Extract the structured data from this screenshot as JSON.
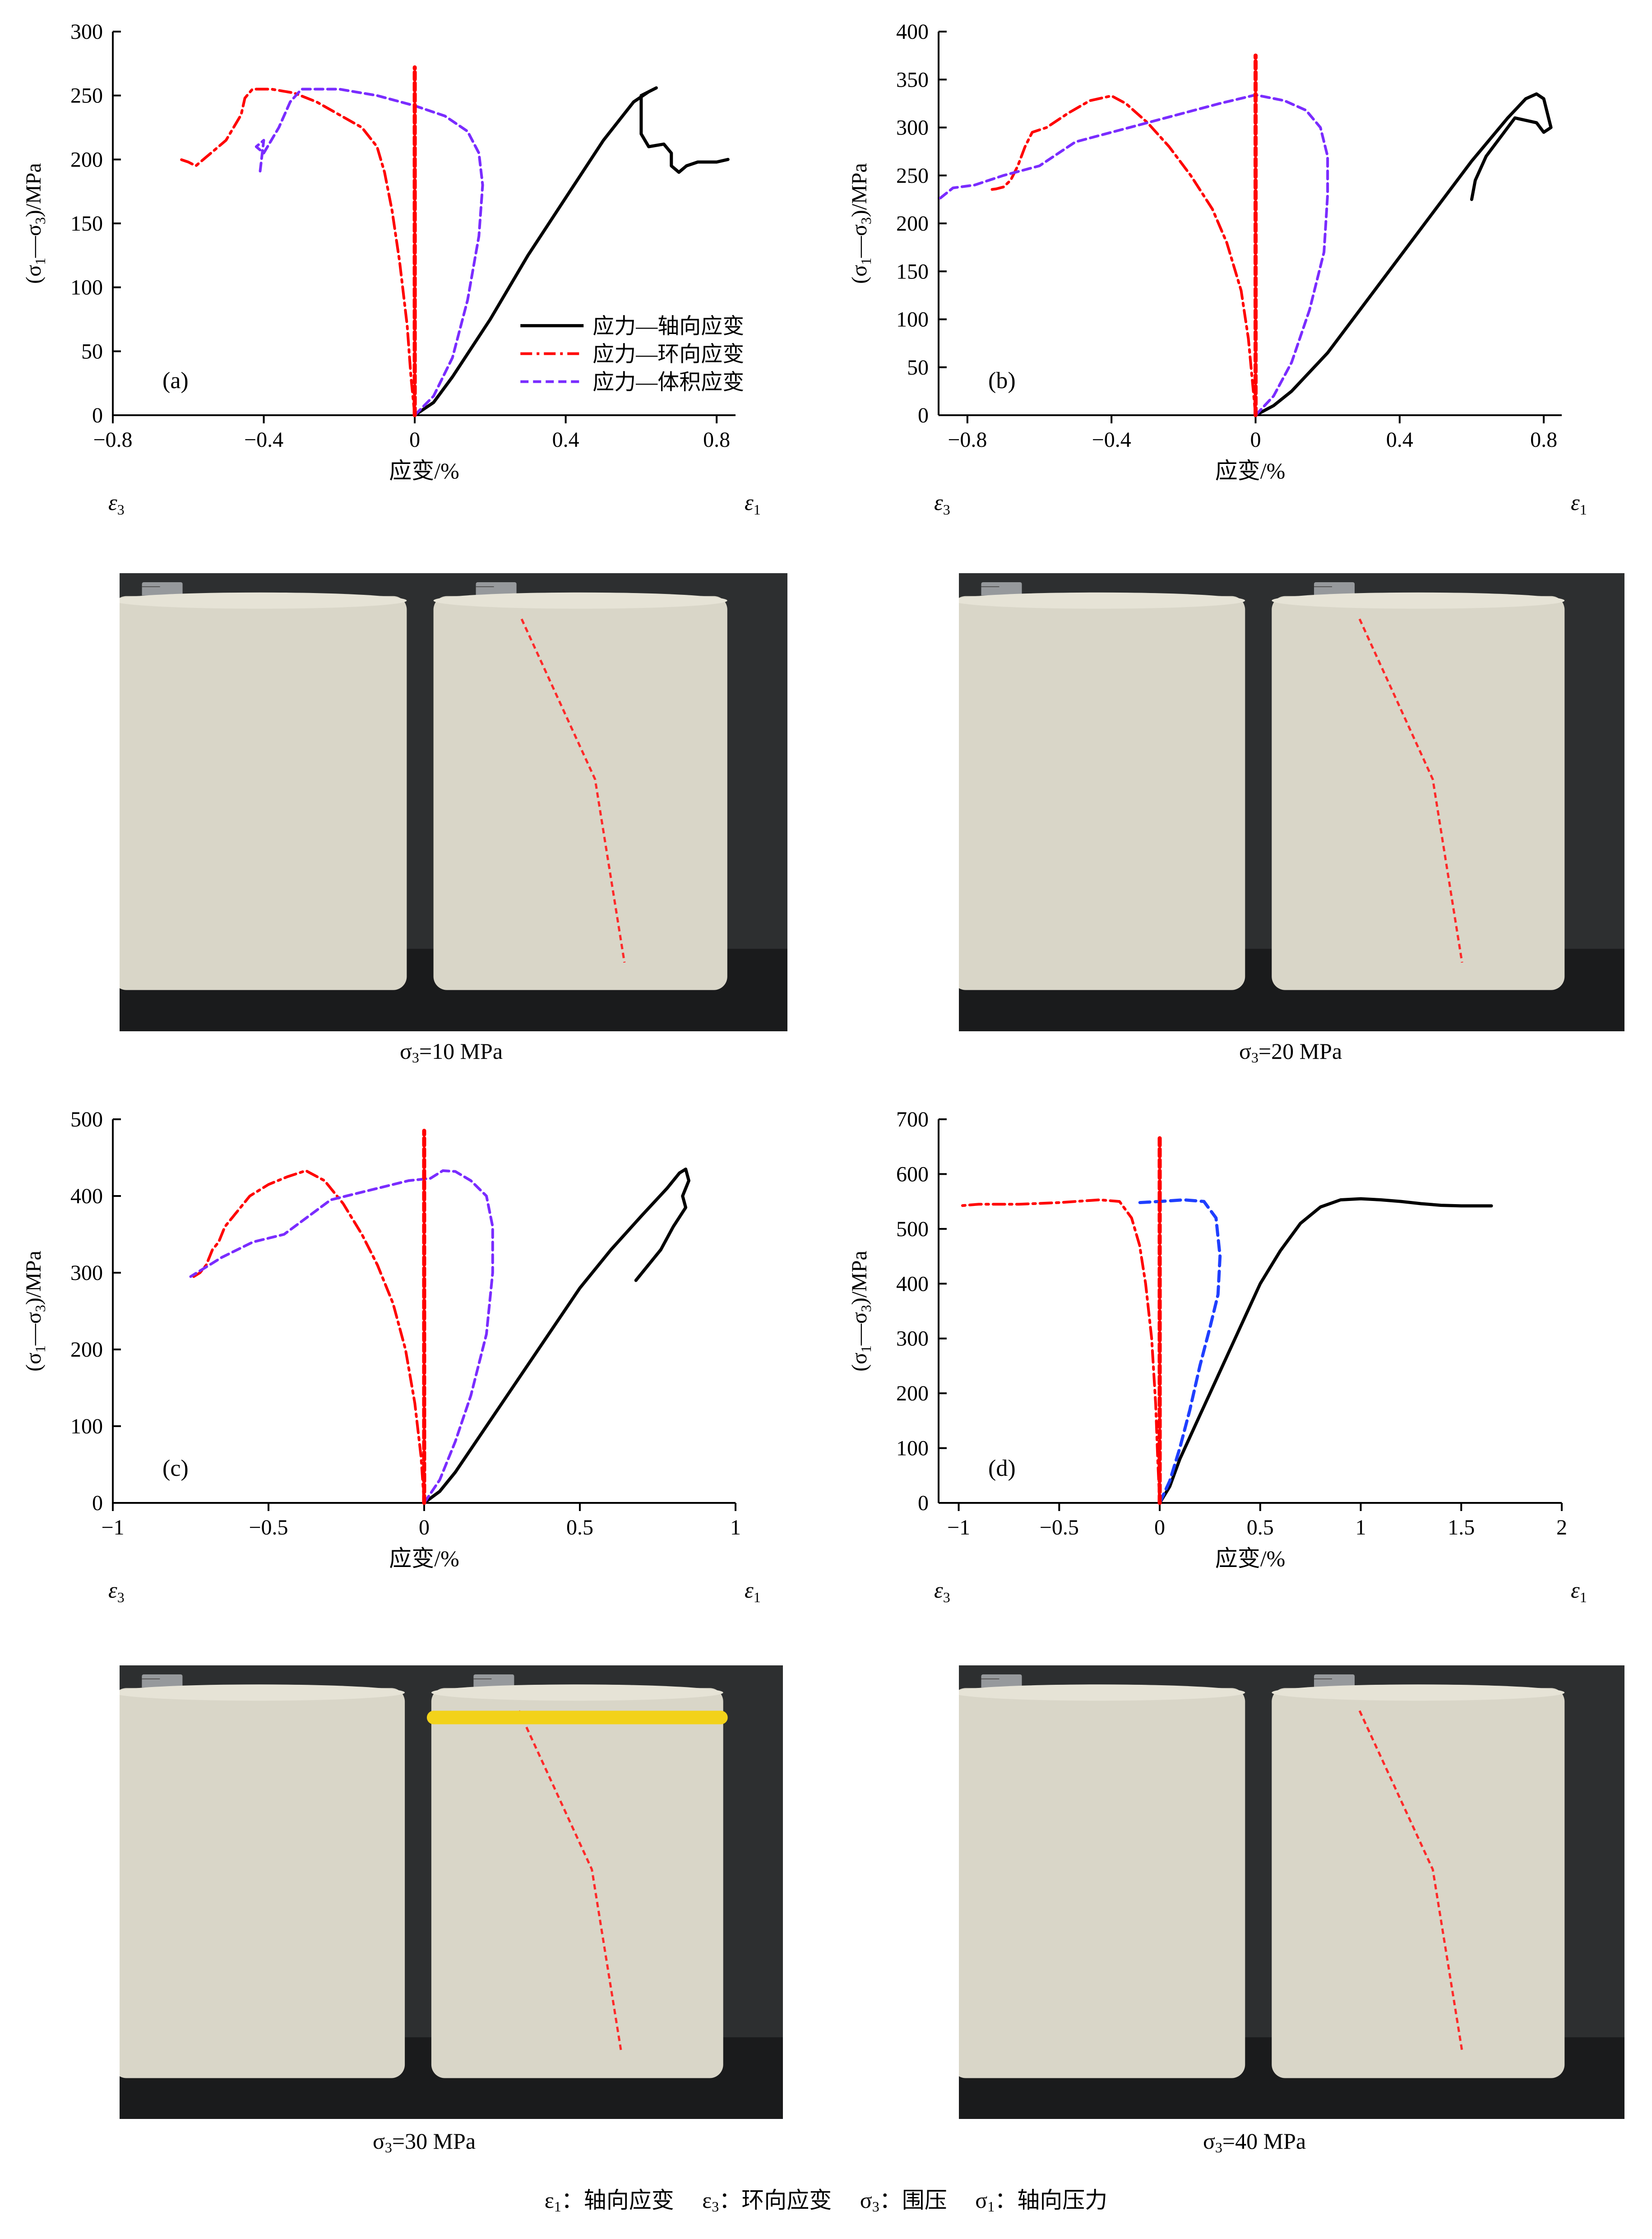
{
  "xlabel": "应变/%",
  "ylabel_html": "(σ<sub>1</sub>—σ<sub>3</sub>)/MPa",
  "eps3_label": "ε",
  "eps3_sub": "3",
  "eps1_label": "ε",
  "eps1_sub": "1",
  "legend": [
    "应力—轴向应变",
    "应力—环向应变",
    "应力—体积应变"
  ],
  "captions": [
    {
      "sigma": "σ",
      "sub": "3",
      "text": "=10 MPa"
    },
    {
      "sigma": "σ",
      "sub": "3",
      "text": "=20 MPa"
    },
    {
      "sigma": "σ",
      "sub": "3",
      "text": "=30 MPa"
    },
    {
      "sigma": "σ",
      "sub": "3",
      "text": "=40 MPa"
    }
  ],
  "footer": {
    "parts": [
      {
        "sym": "ε",
        "sub": "1",
        "text": "：轴向应变　"
      },
      {
        "sym": "ε",
        "sub": "3",
        "text": "：环向应变　"
      },
      {
        "sym": "σ",
        "sub": "3",
        "text": "：围压　"
      },
      {
        "sym": "σ",
        "sub": "1",
        "text": "：轴向压力"
      }
    ]
  },
  "colors": {
    "axial": "#000000",
    "lateral": "#ff0000",
    "volume": "#7a2cff",
    "volume_d": "#1f3fff",
    "zero": "#ff0000"
  },
  "chart_data": [
    {
      "type": "line",
      "panel_label": "(a)",
      "xlim": [
        -0.8,
        0.85
      ],
      "ylim": [
        0,
        300
      ],
      "xticks": [
        -0.8,
        -0.4,
        0,
        0.4,
        0.8
      ],
      "xtick_labels": [
        "−0.8",
        "−0.4",
        "0",
        "0.4",
        "0.8"
      ],
      "yticks": [
        0,
        50,
        100,
        150,
        200,
        250,
        300
      ],
      "legend": true,
      "series": [
        {
          "name": "应力—轴向应变",
          "style": "axial",
          "x": [
            0,
            0.05,
            0.1,
            0.2,
            0.3,
            0.4,
            0.5,
            0.58,
            0.62,
            0.64,
            0.6,
            0.6,
            0.62,
            0.66,
            0.68,
            0.68,
            0.7,
            0.72,
            0.75,
            0.8,
            0.83
          ],
          "y": [
            0,
            10,
            30,
            75,
            125,
            170,
            215,
            245,
            253,
            256,
            250,
            220,
            210,
            212,
            205,
            195,
            190,
            195,
            198,
            198,
            200
          ]
        },
        {
          "name": "应力—环向应变",
          "style": "lateral",
          "x": [
            0,
            -0.01,
            -0.02,
            -0.04,
            -0.06,
            -0.08,
            -0.1,
            -0.14,
            -0.2,
            -0.26,
            -0.32,
            -0.38,
            -0.43,
            -0.45,
            -0.46,
            -0.48,
            -0.5,
            -0.52,
            -0.54,
            -0.56,
            -0.58,
            -0.6,
            -0.62
          ],
          "y": [
            0,
            30,
            70,
            120,
            160,
            190,
            210,
            225,
            235,
            245,
            252,
            255,
            255,
            248,
            235,
            225,
            215,
            210,
            205,
            200,
            195,
            198,
            200
          ]
        },
        {
          "name": "应力—体积应变",
          "style": "volume",
          "x": [
            0,
            0.05,
            0.1,
            0.14,
            0.17,
            0.18,
            0.17,
            0.14,
            0.08,
            0,
            -0.1,
            -0.2,
            -0.3,
            -0.33,
            -0.36,
            -0.38,
            -0.4,
            -0.42,
            -0.4,
            -0.41
          ],
          "y": [
            0,
            15,
            45,
            90,
            140,
            180,
            205,
            222,
            234,
            242,
            250,
            255,
            255,
            245,
            225,
            215,
            205,
            210,
            215,
            190
          ]
        },
        {
          "name": "",
          "style": "zero",
          "x": [
            0,
            0
          ],
          "y": [
            0,
            272
          ]
        }
      ]
    },
    {
      "type": "line",
      "panel_label": "(b)",
      "xlim": [
        -0.88,
        0.85
      ],
      "ylim": [
        0,
        400
      ],
      "xticks": [
        -0.8,
        -0.4,
        0,
        0.4,
        0.8
      ],
      "xtick_labels": [
        "−0.8",
        "−0.4",
        "0",
        "0.4",
        "0.8"
      ],
      "yticks": [
        0,
        50,
        100,
        150,
        200,
        250,
        300,
        350,
        400
      ],
      "legend": false,
      "series": [
        {
          "name": "",
          "style": "axial",
          "x": [
            0,
            0.05,
            0.1,
            0.2,
            0.3,
            0.4,
            0.5,
            0.6,
            0.7,
            0.75,
            0.78,
            0.8,
            0.82,
            0.8,
            0.78,
            0.72,
            0.68,
            0.64,
            0.61,
            0.6
          ],
          "y": [
            0,
            10,
            25,
            65,
            115,
            165,
            215,
            265,
            310,
            330,
            335,
            330,
            300,
            295,
            305,
            310,
            290,
            270,
            245,
            225
          ]
        },
        {
          "name": "",
          "style": "lateral",
          "x": [
            0,
            -0.01,
            -0.02,
            -0.04,
            -0.08,
            -0.12,
            -0.18,
            -0.24,
            -0.3,
            -0.36,
            -0.4,
            -0.46,
            -0.52,
            -0.58,
            -0.62,
            -0.64,
            -0.66,
            -0.68,
            -0.7,
            -0.72,
            -0.74
          ],
          "y": [
            0,
            40,
            80,
            130,
            180,
            215,
            250,
            280,
            305,
            325,
            333,
            328,
            315,
            300,
            295,
            280,
            260,
            245,
            238,
            236,
            235
          ]
        },
        {
          "name": "",
          "style": "volume",
          "x": [
            0,
            0.05,
            0.1,
            0.15,
            0.19,
            0.2,
            0.2,
            0.18,
            0.14,
            0.08,
            0,
            -0.1,
            -0.2,
            -0.3,
            -0.4,
            -0.5,
            -0.6,
            -0.7,
            -0.78,
            -0.84,
            -0.88
          ],
          "y": [
            0,
            20,
            55,
            110,
            170,
            230,
            270,
            300,
            318,
            328,
            334,
            325,
            315,
            305,
            295,
            285,
            260,
            250,
            240,
            237,
            225
          ]
        },
        {
          "name": "",
          "style": "zero",
          "x": [
            0,
            0
          ],
          "y": [
            0,
            375
          ]
        }
      ]
    },
    {
      "type": "line",
      "panel_label": "(c)",
      "xlim": [
        -1.0,
        1.0
      ],
      "ylim": [
        0,
        500
      ],
      "xticks": [
        -1,
        -0.5,
        0,
        0.5,
        1
      ],
      "xtick_labels": [
        "−1",
        "−0.5",
        "0",
        "0.5",
        "1"
      ],
      "yticks": [
        0,
        100,
        200,
        300,
        400,
        500
      ],
      "legend": false,
      "series": [
        {
          "name": "",
          "style": "axial",
          "x": [
            0,
            0.05,
            0.1,
            0.2,
            0.3,
            0.4,
            0.5,
            0.6,
            0.7,
            0.78,
            0.82,
            0.84,
            0.85,
            0.83,
            0.84,
            0.8,
            0.76,
            0.72,
            0.68
          ],
          "y": [
            0,
            15,
            40,
            100,
            160,
            220,
            280,
            330,
            375,
            410,
            430,
            435,
            420,
            400,
            385,
            360,
            330,
            310,
            290
          ]
        },
        {
          "name": "",
          "style": "lateral",
          "x": [
            0,
            -0.01,
            -0.03,
            -0.06,
            -0.1,
            -0.15,
            -0.2,
            -0.26,
            -0.32,
            -0.38,
            -0.44,
            -0.5,
            -0.56,
            -0.6,
            -0.64,
            -0.66,
            -0.68,
            -0.7,
            -0.72,
            -0.74
          ],
          "y": [
            0,
            60,
            130,
            200,
            260,
            310,
            350,
            390,
            420,
            433,
            425,
            415,
            400,
            380,
            360,
            340,
            330,
            310,
            300,
            295
          ]
        },
        {
          "name": "",
          "style": "volume",
          "x": [
            0,
            0.05,
            0.1,
            0.15,
            0.2,
            0.22,
            0.22,
            0.2,
            0.15,
            0.1,
            0.06,
            0.02,
            -0.05,
            -0.15,
            -0.3,
            -0.45,
            -0.55,
            -0.65,
            -0.75
          ],
          "y": [
            0,
            30,
            80,
            140,
            220,
            300,
            360,
            400,
            420,
            432,
            433,
            423,
            420,
            410,
            395,
            350,
            340,
            320,
            295
          ]
        },
        {
          "name": "",
          "style": "zero",
          "x": [
            0,
            0
          ],
          "y": [
            0,
            485
          ]
        }
      ]
    },
    {
      "type": "line",
      "panel_label": "(d)",
      "xlim": [
        -1.1,
        2.0
      ],
      "ylim": [
        0,
        700
      ],
      "xticks": [
        -1,
        -0.5,
        0,
        0.5,
        1,
        1.5,
        2
      ],
      "xtick_labels": [
        "−1",
        "−0.5",
        "0",
        "0.5",
        "1",
        "1.5",
        "2"
      ],
      "yticks": [
        0,
        100,
        200,
        300,
        400,
        500,
        600,
        700
      ],
      "legend": false,
      "series": [
        {
          "name": "",
          "style": "axial",
          "x": [
            0,
            0.05,
            0.1,
            0.2,
            0.3,
            0.4,
            0.5,
            0.6,
            0.7,
            0.8,
            0.9,
            1.0,
            1.1,
            1.2,
            1.3,
            1.4,
            1.5,
            1.6,
            1.65
          ],
          "y": [
            0,
            30,
            80,
            160,
            240,
            320,
            400,
            460,
            510,
            540,
            553,
            555,
            553,
            550,
            546,
            543,
            542,
            542,
            542
          ]
        },
        {
          "name": "",
          "style": "lateral",
          "x": [
            0,
            -0.01,
            -0.02,
            -0.04,
            -0.07,
            -0.1,
            -0.14,
            -0.2,
            -0.3,
            -0.5,
            -0.7,
            -0.9,
            -1.0
          ],
          "y": [
            0,
            80,
            180,
            300,
            400,
            470,
            520,
            550,
            553,
            548,
            545,
            545,
            542
          ]
        },
        {
          "name": "",
          "style": "volume_d",
          "x": [
            0,
            0.05,
            0.1,
            0.15,
            0.2,
            0.25,
            0.29,
            0.3,
            0.28,
            0.22,
            0.12,
            0.0,
            -0.1
          ],
          "y": [
            0,
            40,
            100,
            170,
            250,
            320,
            380,
            450,
            520,
            550,
            553,
            550,
            548
          ]
        },
        {
          "name": "",
          "style": "zero",
          "x": [
            0,
            0
          ],
          "y": [
            0,
            670
          ]
        }
      ]
    }
  ]
}
